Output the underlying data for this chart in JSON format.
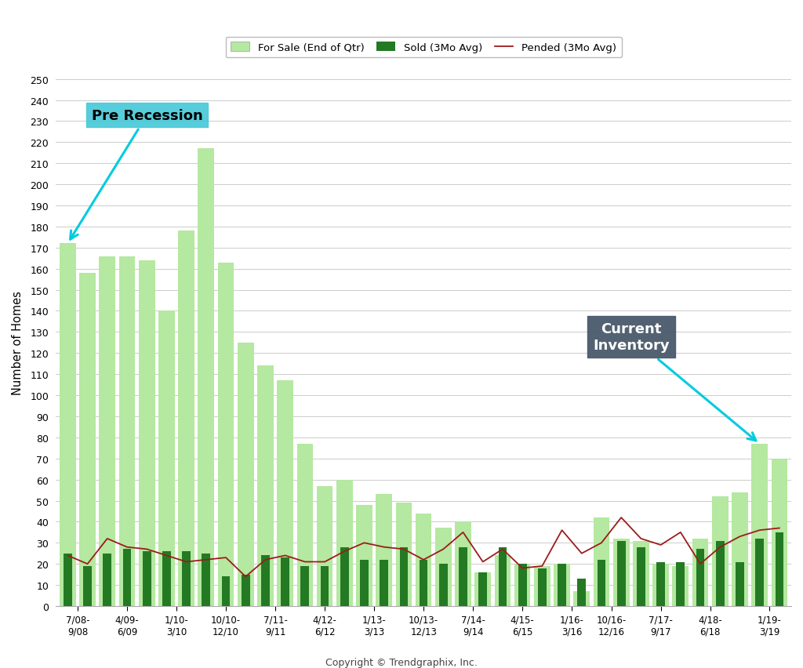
{
  "ylabel": "Number of Homes",
  "copyright": "Copyright © Trendgraphix, Inc.",
  "for_sale": [
    172,
    158,
    166,
    166,
    164,
    140,
    178,
    217,
    163,
    125,
    114,
    107,
    77,
    57,
    60,
    48,
    53,
    49,
    44,
    37,
    40,
    16,
    24,
    20,
    19,
    20,
    7,
    42,
    32,
    31,
    20,
    19,
    32,
    52,
    54,
    77,
    70
  ],
  "sold": [
    25,
    19,
    25,
    27,
    26,
    26,
    26,
    25,
    14,
    15,
    24,
    23,
    19,
    19,
    28,
    22,
    22,
    28,
    22,
    20,
    28,
    16,
    28,
    20,
    18,
    20,
    13,
    22,
    31,
    28,
    21,
    21,
    27,
    31,
    21,
    32,
    35
  ],
  "pended": [
    24,
    20,
    32,
    28,
    27,
    24,
    21,
    22,
    23,
    14,
    22,
    24,
    21,
    21,
    26,
    30,
    28,
    27,
    22,
    27,
    35,
    21,
    27,
    18,
    19,
    36,
    25,
    30,
    42,
    32,
    29,
    35,
    20,
    28,
    33,
    36,
    37
  ],
  "x_tick_labels": [
    "7/08-\n9/08",
    "4/09-\n6/09",
    "1/10-\n3/10",
    "10/10-\n12/10",
    "7/11-\n9/11",
    "4/12-\n6/12",
    "1/13-\n3/13",
    "10/13-\n12/13",
    "7/14-\n9/14",
    "4/15-\n6/15",
    "1/16-\n3/16",
    "10/16-\n12/16",
    "7/17-\n9/17",
    "4/18-\n6/18",
    "1/19-\n3/19"
  ],
  "ylim": [
    0,
    250
  ],
  "yticks": [
    0,
    10,
    20,
    30,
    40,
    50,
    60,
    70,
    80,
    90,
    100,
    110,
    120,
    130,
    140,
    150,
    160,
    170,
    180,
    190,
    200,
    210,
    220,
    230,
    240,
    250
  ],
  "for_sale_color": "#b5e8a0",
  "sold_color": "#237a23",
  "pended_color": "#9b1c1c",
  "bg_color": "#ffffff",
  "grid_color": "#cccccc",
  "pre_recession_box_color": "#45c8d8",
  "pre_recession_text_color": "#000000",
  "current_box_color": "#4a5a6a",
  "current_text_color": "#ffffff",
  "arrow_color": "#00ccdd"
}
